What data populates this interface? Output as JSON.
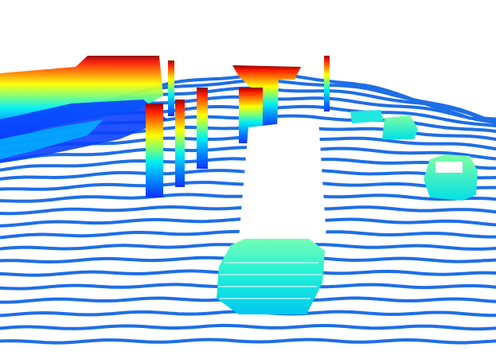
{
  "scene": {
    "kind": "lidar-point-cloud",
    "colormap": "jet",
    "colormap_stops": [
      "#0000ff",
      "#0080ff",
      "#00ffff",
      "#80ff80",
      "#ffff00",
      "#ff8000",
      "#ff0000",
      "#800000"
    ],
    "ground_color": "#1e6ee6",
    "background": "#ffffff",
    "objects": [
      {
        "type": "ground-plane"
      },
      {
        "type": "building-facade"
      },
      {
        "type": "tree-trunk"
      },
      {
        "type": "pole"
      },
      {
        "type": "car-foreground"
      },
      {
        "type": "car-right"
      },
      {
        "type": "car-distant"
      },
      {
        "type": "car-distant"
      }
    ]
  }
}
